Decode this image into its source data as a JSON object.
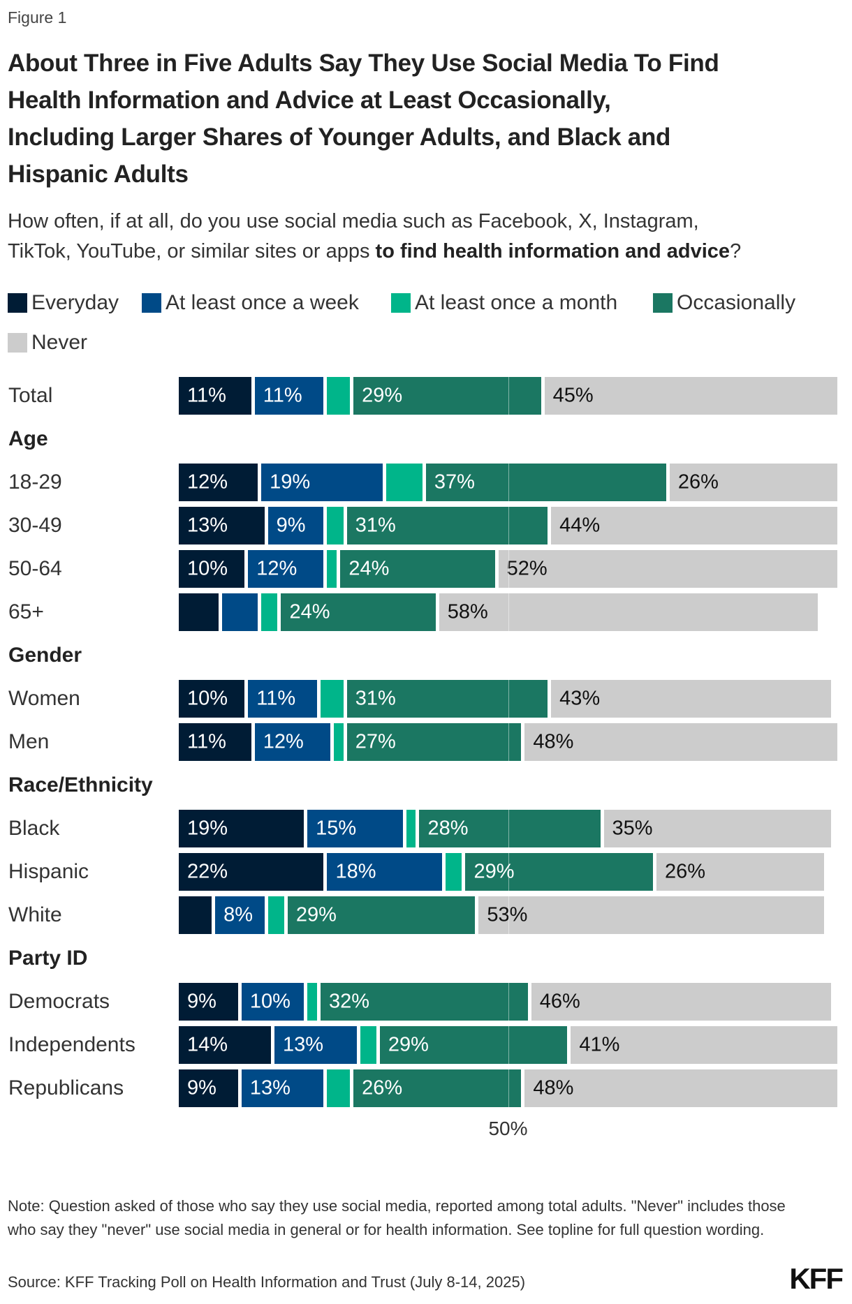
{
  "figure_label": "Figure 1",
  "title_lines": [
    "About Three in Five Adults Say They Use Social Media To Find",
    "Health Information and Advice at Least Occasionally,",
    "Including Larger Shares of Younger Adults, and Black and",
    "Hispanic Adults"
  ],
  "subtitle": {
    "line1": "How often, if at all, do you use social media such as Facebook, X, Instagram,",
    "line2_plain": "TikTok, YouTube, or similar sites or apps ",
    "line2_bold": "to find health information and advice",
    "line2_end": "?"
  },
  "note": "Note: Question asked of those who say they use social media, reported among total adults. \"Never\" includes those who say they \"never\" use social media in general or for health information. See topline for full question wording.",
  "source": "Source: KFF Tracking Poll on Health Information and Trust (July 8-14, 2025)",
  "logo": "KFF",
  "chart_data": {
    "type": "bar",
    "orientation": "horizontal",
    "stacked": true,
    "xlim": [
      0,
      100
    ],
    "unit": "%",
    "reference_line": {
      "value": 50,
      "label": "50%"
    },
    "legend_placement": "top",
    "series": [
      {
        "name": "Everyday",
        "color": "#001c35",
        "label_color": "#ffffff"
      },
      {
        "name": "At least once a week",
        "color": "#004a87",
        "label_color": "#ffffff"
      },
      {
        "name": "At least once a month",
        "color": "#00b58a",
        "label_color": "#ffffff"
      },
      {
        "name": "Occasionally",
        "color": "#1b7762",
        "label_color": "#ffffff"
      },
      {
        "name": "Never",
        "color": "#cccccc",
        "label_color": "#111111"
      }
    ],
    "rows": [
      {
        "label": "Total",
        "values": [
          11,
          11,
          4,
          29,
          45
        ],
        "labeled": [
          true,
          true,
          false,
          true,
          true
        ]
      },
      {
        "label": "Age",
        "group": true
      },
      {
        "label": "18-29",
        "values": [
          12,
          19,
          6,
          37,
          26
        ],
        "labeled": [
          true,
          true,
          false,
          true,
          true
        ]
      },
      {
        "label": "30-49",
        "values": [
          13,
          9,
          3,
          31,
          44
        ],
        "labeled": [
          true,
          true,
          false,
          true,
          true
        ]
      },
      {
        "label": "50-64",
        "values": [
          10,
          12,
          2,
          24,
          52
        ],
        "labeled": [
          true,
          true,
          false,
          true,
          true
        ]
      },
      {
        "label": "65+",
        "values": [
          6,
          6,
          3,
          24,
          58
        ],
        "labeled": [
          false,
          false,
          false,
          true,
          true
        ]
      },
      {
        "label": "Gender",
        "group": true
      },
      {
        "label": "Women",
        "values": [
          10,
          11,
          4,
          31,
          43
        ],
        "labeled": [
          true,
          true,
          false,
          true,
          true
        ]
      },
      {
        "label": "Men",
        "values": [
          11,
          12,
          2,
          27,
          48
        ],
        "labeled": [
          true,
          true,
          false,
          true,
          true
        ]
      },
      {
        "label": "Race/Ethnicity",
        "group": true
      },
      {
        "label": "Black",
        "values": [
          19,
          15,
          2,
          28,
          35
        ],
        "labeled": [
          true,
          true,
          false,
          true,
          true
        ]
      },
      {
        "label": "Hispanic",
        "values": [
          22,
          18,
          3,
          29,
          26
        ],
        "labeled": [
          true,
          true,
          false,
          true,
          true
        ]
      },
      {
        "label": "White",
        "values": [
          5,
          8,
          3,
          29,
          53
        ],
        "labeled": [
          false,
          true,
          false,
          true,
          true
        ]
      },
      {
        "label": "Party ID",
        "group": true
      },
      {
        "label": "Democrats",
        "values": [
          9,
          10,
          2,
          32,
          46
        ],
        "labeled": [
          true,
          true,
          false,
          true,
          true
        ]
      },
      {
        "label": "Independents",
        "values": [
          14,
          13,
          3,
          29,
          41
        ],
        "labeled": [
          true,
          true,
          false,
          true,
          true
        ]
      },
      {
        "label": "Republicans",
        "values": [
          9,
          13,
          4,
          26,
          48
        ],
        "labeled": [
          true,
          true,
          false,
          true,
          true
        ]
      }
    ]
  }
}
